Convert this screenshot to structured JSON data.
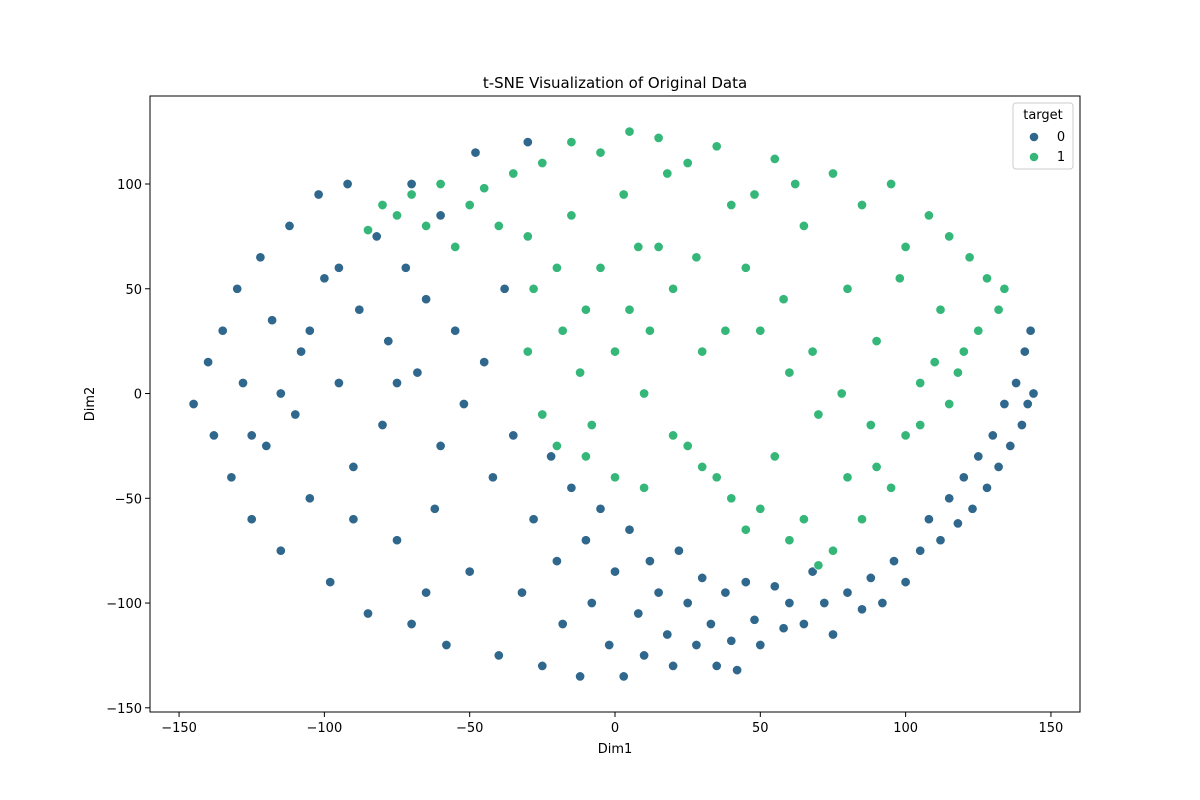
{
  "chart_data": {
    "type": "scatter",
    "title": "t-SNE Visualization of Original Data",
    "xlabel": "Dim1",
    "ylabel": "Dim2",
    "xlim": [
      -160,
      160
    ],
    "ylim": [
      -152,
      142
    ],
    "xticks": [
      -150,
      -100,
      -50,
      0,
      50,
      100,
      150
    ],
    "xtick_labels": [
      "−150",
      "−100",
      "−50",
      "0",
      "50",
      "100",
      "150"
    ],
    "yticks": [
      -150,
      -100,
      -50,
      0,
      50,
      100
    ],
    "ytick_labels": [
      "−150",
      "−100",
      "−50",
      "0",
      "50",
      "100"
    ],
    "grid": false,
    "legend": {
      "title": "target",
      "placement": "top-right",
      "entries": [
        {
          "label": "0",
          "color": "#30678d"
        },
        {
          "label": "1",
          "color": "#35b779"
        }
      ]
    },
    "series": [
      {
        "name": "0",
        "color": "#30678d",
        "points": [
          [
            -145,
            -5
          ],
          [
            -140,
            15
          ],
          [
            -138,
            -20
          ],
          [
            -135,
            30
          ],
          [
            -132,
            -40
          ],
          [
            -130,
            50
          ],
          [
            -128,
            5
          ],
          [
            -125,
            -60
          ],
          [
            -122,
            65
          ],
          [
            -120,
            -25
          ],
          [
            -118,
            35
          ],
          [
            -115,
            -75
          ],
          [
            -112,
            80
          ],
          [
            -110,
            -10
          ],
          [
            -108,
            20
          ],
          [
            -105,
            -50
          ],
          [
            -102,
            95
          ],
          [
            -100,
            55
          ],
          [
            -98,
            -90
          ],
          [
            -95,
            5
          ],
          [
            -92,
            100
          ],
          [
            -90,
            -35
          ],
          [
            -88,
            40
          ],
          [
            -85,
            -105
          ],
          [
            -82,
            75
          ],
          [
            -80,
            -15
          ],
          [
            -78,
            25
          ],
          [
            -75,
            -70
          ],
          [
            -72,
            60
          ],
          [
            -70,
            -110
          ],
          [
            -68,
            10
          ],
          [
            -65,
            45
          ],
          [
            -62,
            -55
          ],
          [
            -60,
            85
          ],
          [
            -58,
            -120
          ],
          [
            -55,
            30
          ],
          [
            -52,
            -5
          ],
          [
            -50,
            -85
          ],
          [
            -48,
            115
          ],
          [
            -45,
            15
          ],
          [
            -42,
            -40
          ],
          [
            -40,
            -125
          ],
          [
            -38,
            50
          ],
          [
            -35,
            -20
          ],
          [
            -32,
            -95
          ],
          [
            -30,
            120
          ],
          [
            -28,
            -60
          ],
          [
            -25,
            -130
          ],
          [
            -22,
            -30
          ],
          [
            -20,
            -80
          ],
          [
            -18,
            -110
          ],
          [
            -15,
            -45
          ],
          [
            -12,
            -135
          ],
          [
            -10,
            -70
          ],
          [
            -8,
            -100
          ],
          [
            -5,
            -55
          ],
          [
            -2,
            -120
          ],
          [
            0,
            -85
          ],
          [
            3,
            -135
          ],
          [
            5,
            -65
          ],
          [
            8,
            -105
          ],
          [
            10,
            -125
          ],
          [
            12,
            -80
          ],
          [
            15,
            -95
          ],
          [
            18,
            -115
          ],
          [
            20,
            -130
          ],
          [
            22,
            -75
          ],
          [
            25,
            -100
          ],
          [
            28,
            -120
          ],
          [
            30,
            -88
          ],
          [
            33,
            -110
          ],
          [
            35,
            -130
          ],
          [
            38,
            -95
          ],
          [
            40,
            -118
          ],
          [
            42,
            -132
          ],
          [
            45,
            -90
          ],
          [
            48,
            -108
          ],
          [
            50,
            -120
          ],
          [
            55,
            -92
          ],
          [
            58,
            -112
          ],
          [
            60,
            -100
          ],
          [
            65,
            -110
          ],
          [
            68,
            -85
          ],
          [
            72,
            -100
          ],
          [
            75,
            -115
          ],
          [
            80,
            -95
          ],
          [
            85,
            -103
          ],
          [
            88,
            -88
          ],
          [
            92,
            -100
          ],
          [
            96,
            -80
          ],
          [
            100,
            -90
          ],
          [
            105,
            -75
          ],
          [
            108,
            -60
          ],
          [
            112,
            -70
          ],
          [
            115,
            -50
          ],
          [
            118,
            -62
          ],
          [
            120,
            -40
          ],
          [
            123,
            -55
          ],
          [
            125,
            -30
          ],
          [
            128,
            -45
          ],
          [
            130,
            -20
          ],
          [
            132,
            -35
          ],
          [
            134,
            -5
          ],
          [
            136,
            -25
          ],
          [
            138,
            5
          ],
          [
            140,
            -15
          ],
          [
            141,
            20
          ],
          [
            142,
            -5
          ],
          [
            143,
            30
          ],
          [
            144,
            0
          ],
          [
            -60,
            -25
          ],
          [
            -75,
            5
          ],
          [
            -90,
            -60
          ],
          [
            -105,
            30
          ],
          [
            -115,
            0
          ],
          [
            -125,
            -20
          ],
          [
            -95,
            60
          ],
          [
            -80,
            90
          ],
          [
            -70,
            100
          ],
          [
            -65,
            -95
          ]
        ]
      },
      {
        "name": "1",
        "color": "#35b779",
        "points": [
          [
            -85,
            78
          ],
          [
            -80,
            90
          ],
          [
            -75,
            85
          ],
          [
            -70,
            95
          ],
          [
            -65,
            80
          ],
          [
            -60,
            100
          ],
          [
            -55,
            70
          ],
          [
            -50,
            90
          ],
          [
            -45,
            98
          ],
          [
            -40,
            80
          ],
          [
            -35,
            105
          ],
          [
            -30,
            75
          ],
          [
            -25,
            110
          ],
          [
            -20,
            60
          ],
          [
            -15,
            120
          ],
          [
            -10,
            40
          ],
          [
            -5,
            115
          ],
          [
            0,
            20
          ],
          [
            5,
            125
          ],
          [
            10,
            0
          ],
          [
            15,
            122
          ],
          [
            20,
            -20
          ],
          [
            25,
            110
          ],
          [
            30,
            -35
          ],
          [
            35,
            118
          ],
          [
            40,
            90
          ],
          [
            45,
            60
          ],
          [
            50,
            30
          ],
          [
            55,
            112
          ],
          [
            60,
            10
          ],
          [
            65,
            80
          ],
          [
            70,
            -10
          ],
          [
            75,
            105
          ],
          [
            80,
            50
          ],
          [
            85,
            90
          ],
          [
            90,
            25
          ],
          [
            95,
            100
          ],
          [
            100,
            70
          ],
          [
            105,
            -15
          ],
          [
            108,
            85
          ],
          [
            112,
            40
          ],
          [
            115,
            75
          ],
          [
            118,
            10
          ],
          [
            122,
            65
          ],
          [
            125,
            30
          ],
          [
            128,
            55
          ],
          [
            132,
            40
          ],
          [
            134,
            50
          ],
          [
            -28,
            50
          ],
          [
            -30,
            20
          ],
          [
            -25,
            -10
          ],
          [
            -20,
            -25
          ],
          [
            -15,
            85
          ],
          [
            -10,
            -30
          ],
          [
            -5,
            60
          ],
          [
            0,
            -40
          ],
          [
            5,
            40
          ],
          [
            10,
            -45
          ],
          [
            15,
            70
          ],
          [
            20,
            50
          ],
          [
            25,
            -25
          ],
          [
            30,
            20
          ],
          [
            35,
            -40
          ],
          [
            40,
            -50
          ],
          [
            45,
            -65
          ],
          [
            50,
            -55
          ],
          [
            55,
            -30
          ],
          [
            60,
            -70
          ],
          [
            65,
            -60
          ],
          [
            70,
            -82
          ],
          [
            75,
            -75
          ],
          [
            80,
            -40
          ],
          [
            85,
            -60
          ],
          [
            90,
            -35
          ],
          [
            95,
            -45
          ],
          [
            100,
            -20
          ],
          [
            105,
            5
          ],
          [
            110,
            15
          ],
          [
            115,
            -5
          ],
          [
            120,
            20
          ],
          [
            -12,
            10
          ],
          [
            -8,
            -15
          ],
          [
            3,
            95
          ],
          [
            12,
            30
          ],
          [
            18,
            105
          ],
          [
            28,
            65
          ],
          [
            38,
            30
          ],
          [
            48,
            95
          ],
          [
            58,
            45
          ],
          [
            68,
            20
          ],
          [
            78,
            0
          ],
          [
            88,
            -15
          ],
          [
            98,
            55
          ],
          [
            8,
            70
          ],
          [
            -18,
            30
          ],
          [
            62,
            100
          ]
        ]
      }
    ]
  }
}
